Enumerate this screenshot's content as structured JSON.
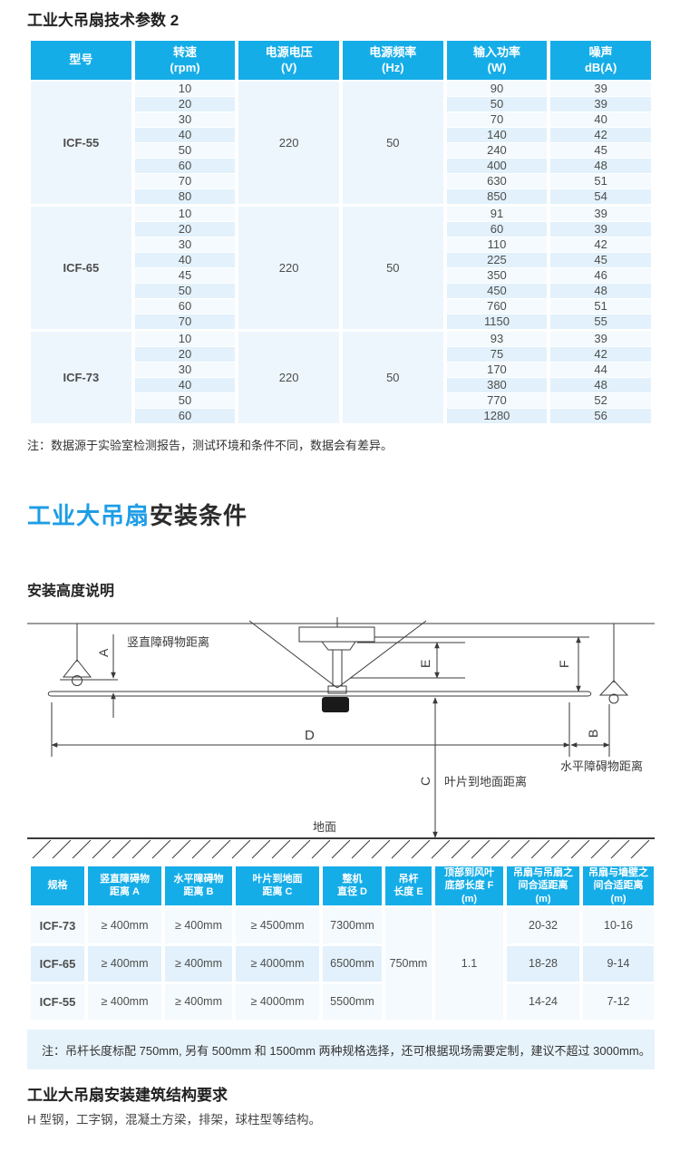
{
  "section1": {
    "title": "工业大吊扇技术参数 2",
    "table": {
      "headers": [
        [
          "型号"
        ],
        [
          "转速",
          "(rpm)"
        ],
        [
          "电源电压",
          "(V)"
        ],
        [
          "电源频率",
          "(Hz)"
        ],
        [
          "输入功率",
          "(W)"
        ],
        [
          "噪声",
          "dB(A)"
        ]
      ],
      "groups": [
        {
          "model": "ICF-55",
          "voltage": "220",
          "frequency": "50",
          "rows": [
            [
              "10",
              "90",
              "39"
            ],
            [
              "20",
              "50",
              "39"
            ],
            [
              "30",
              "70",
              "40"
            ],
            [
              "40",
              "140",
              "42"
            ],
            [
              "50",
              "240",
              "45"
            ],
            [
              "60",
              "400",
              "48"
            ],
            [
              "70",
              "630",
              "51"
            ],
            [
              "80",
              "850",
              "54"
            ]
          ]
        },
        {
          "model": "ICF-65",
          "voltage": "220",
          "frequency": "50",
          "rows": [
            [
              "10",
              "91",
              "39"
            ],
            [
              "20",
              "60",
              "39"
            ],
            [
              "30",
              "110",
              "42"
            ],
            [
              "40",
              "225",
              "45"
            ],
            [
              "45",
              "350",
              "46"
            ],
            [
              "50",
              "450",
              "48"
            ],
            [
              "60",
              "760",
              "51"
            ],
            [
              "70",
              "1150",
              "55"
            ]
          ]
        },
        {
          "model": "ICF-73",
          "voltage": "220",
          "frequency": "50",
          "rows": [
            [
              "10",
              "93",
              "39"
            ],
            [
              "20",
              "75",
              "42"
            ],
            [
              "30",
              "170",
              "44"
            ],
            [
              "40",
              "380",
              "48"
            ],
            [
              "50",
              "770",
              "52"
            ],
            [
              "60",
              "1280",
              "56"
            ]
          ]
        }
      ]
    },
    "note": "注：数据源于实验室检测报告，测试环境和条件不同，数据会有差异。"
  },
  "section2": {
    "title_blue": "工业大吊扇",
    "title_black": "安装条件",
    "subtitle": "安装高度说明",
    "diagram": {
      "labels": {
        "a": "A",
        "b": "B",
        "c": "C",
        "d": "D",
        "e": "E",
        "f": "F"
      },
      "texts": {
        "vertical_obstacle": "竖直障碍物距离",
        "horizontal_obstacle": "水平障碍物距离",
        "blade_to_ground": "叶片到地面距离",
        "ground": "地面"
      }
    },
    "table": {
      "headers": [
        "规格",
        "竖直障碍物\n距离 A",
        "水平障碍物\n距离 B",
        "叶片到地面\n距离 C",
        "整机\n直径 D",
        "吊杆\n长度 E",
        "顶部到风叶\n底部长度 F\n(m)",
        "吊扇与吊扇之\n间合适距离\n(m)",
        "吊扇与墙壁之\n间合适距离\n(m)"
      ],
      "rows": [
        {
          "model": "ICF-73",
          "a": "≥ 400mm",
          "b": "≥ 400mm",
          "c": "≥ 4500mm",
          "d": "7300mm",
          "fan_spacing": "20-32",
          "wall_spacing": "10-16"
        },
        {
          "model": "ICF-65",
          "a": "≥ 400mm",
          "b": "≥ 400mm",
          "c": "≥ 4000mm",
          "d": "6500mm",
          "fan_spacing": "18-28",
          "wall_spacing": "9-14"
        },
        {
          "model": "ICF-55",
          "a": "≥ 400mm",
          "b": "≥ 400mm",
          "c": "≥ 4000mm",
          "d": "5500mm",
          "fan_spacing": "14-24",
          "wall_spacing": "7-12"
        }
      ],
      "merged": {
        "rod_length": "750mm",
        "top_to_blade": "1.1"
      }
    },
    "note": "注：吊杆长度标配 750mm, 另有 500mm 和 1500mm 两种规格选择，还可根据现场需要定制，建议不超过 3000mm。"
  },
  "section3": {
    "heading": "工业大吊扇安装建筑结构要求",
    "body": "H 型钢，工字钢，混凝土方梁，排架，球柱型等结构。"
  },
  "colors": {
    "header_bg": "#15ade8",
    "accent_blue": "#1e9de6",
    "row_light": "#f4fafd",
    "row_dark": "#e2f1fb",
    "note_bg": "#e7f3fb"
  }
}
